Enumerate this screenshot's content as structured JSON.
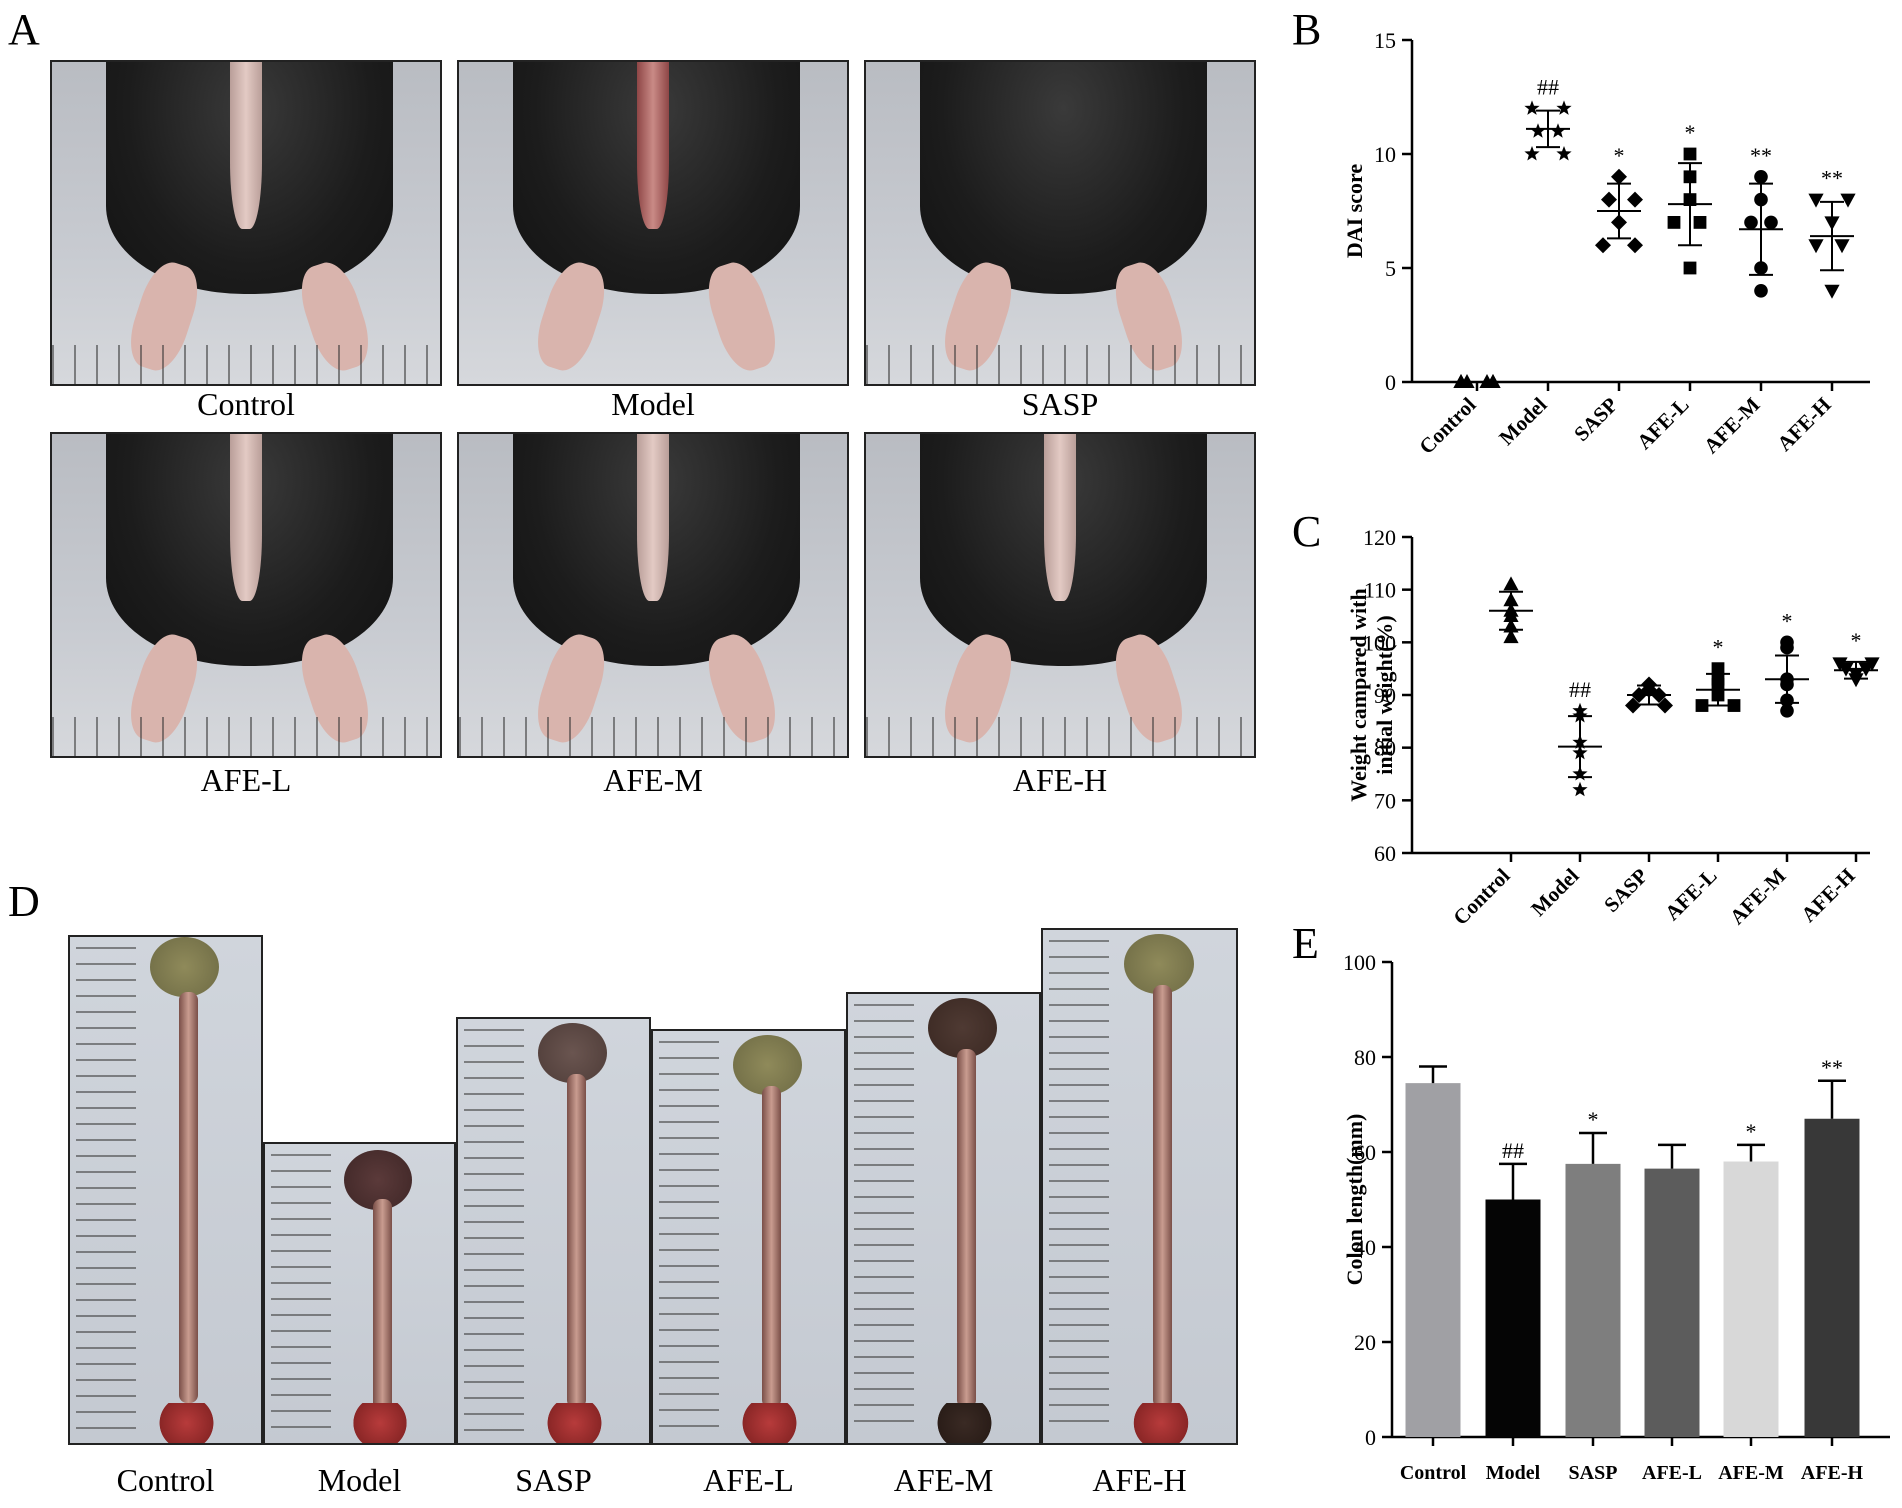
{
  "panels": {
    "a": "A",
    "b": "B",
    "c": "C",
    "d": "D",
    "e": "E"
  },
  "groups": [
    "Control",
    "Model",
    "SASP",
    "AFE-L",
    "AFE-M",
    "AFE-H"
  ],
  "chart_data": [
    {
      "panel": "B",
      "type": "scatter",
      "ylabel": "DAI score",
      "ylim": [
        0,
        15
      ],
      "yticks": [
        0,
        5,
        10,
        15
      ],
      "categories": [
        "Control",
        "Model",
        "SASP",
        "AFE-L",
        "AFE-M",
        "AFE-H"
      ],
      "markers": [
        "triangle",
        "star",
        "diamond",
        "square",
        "circle",
        "triangle-down"
      ],
      "means": [
        0,
        11.1,
        7.5,
        7.8,
        6.7,
        6.4
      ],
      "errors": [
        0,
        0.8,
        1.2,
        1.8,
        2.0,
        1.5
      ],
      "points": [
        [
          0,
          0,
          0,
          0,
          0,
          0
        ],
        [
          12,
          12,
          11,
          11,
          10,
          10
        ],
        [
          9,
          8,
          8,
          7,
          6,
          6
        ],
        [
          10,
          9,
          8,
          7,
          7,
          5
        ],
        [
          9,
          8,
          7,
          7,
          5,
          4
        ],
        [
          8,
          8,
          7,
          6,
          6,
          4
        ]
      ],
      "annotations": [
        "",
        "##",
        "*",
        "*",
        "**",
        "**"
      ],
      "grid": false
    },
    {
      "panel": "C",
      "type": "scatter",
      "ylabel": "Weight campared with initial weight(%)",
      "ylim": [
        60,
        120
      ],
      "yticks": [
        60,
        70,
        80,
        90,
        100,
        110,
        120
      ],
      "categories": [
        "Control",
        "Model",
        "SASP",
        "AFE-L",
        "AFE-M",
        "AFE-H"
      ],
      "markers": [
        "triangle",
        "star",
        "diamond",
        "square",
        "circle",
        "triangle-down"
      ],
      "means": [
        106,
        80.2,
        90,
        91,
        93,
        94.7
      ],
      "errors": [
        3.6,
        5.8,
        1.8,
        3.0,
        4.5,
        1.6
      ],
      "points": [
        [
          111,
          108,
          106,
          105,
          103,
          101
        ],
        [
          87,
          86,
          81,
          79,
          75,
          72
        ],
        [
          92,
          91,
          90,
          90,
          88,
          88
        ],
        [
          95,
          93,
          92,
          90,
          88,
          88
        ],
        [
          100,
          99,
          93,
          92,
          89,
          87
        ],
        [
          96,
          96,
          95,
          95,
          94,
          93
        ]
      ],
      "annotations": [
        "",
        "##",
        "",
        "*",
        "*",
        "*"
      ],
      "grid": false
    },
    {
      "panel": "E",
      "type": "bar",
      "ylabel": "Colon length(mm)",
      "ylim": [
        0,
        100
      ],
      "yticks": [
        0,
        20,
        40,
        60,
        80,
        100
      ],
      "categories": [
        "Control",
        "Model",
        "SASP",
        "AFE-L",
        "AFE-M",
        "AFE-H"
      ],
      "values": [
        74.5,
        50,
        57.5,
        56.5,
        58,
        67
      ],
      "errors": [
        3.5,
        7.5,
        6.5,
        5,
        3.5,
        8
      ],
      "colors": [
        "#a0a0a4",
        "#050505",
        "#7e7e7e",
        "#5c5c5c",
        "#d8d8d8",
        "#383838"
      ],
      "annotations": [
        "",
        "##",
        "*",
        "",
        "*",
        "**"
      ],
      "grid": false
    }
  ]
}
